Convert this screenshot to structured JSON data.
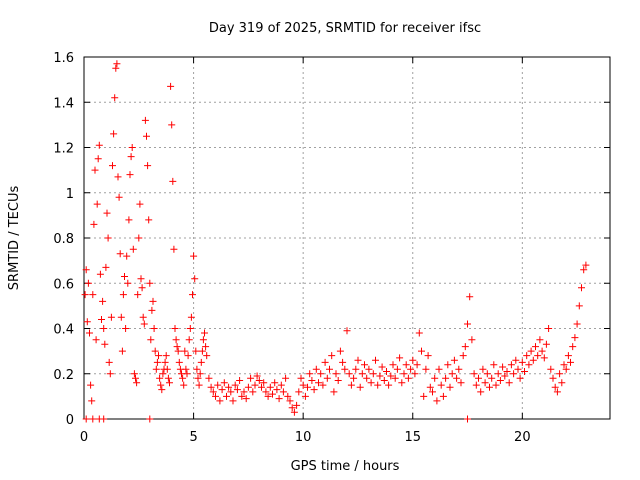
{
  "chart_data": {
    "type": "scatter",
    "title": "Day 319 of 2025, SRMTID for receiver ifsc",
    "xlabel": "GPS time / hours",
    "ylabel": "SRMTID / TECUs",
    "xlim": [
      0,
      24
    ],
    "ylim": [
      0,
      1.6
    ],
    "x_ticks": [
      0,
      5,
      10,
      15,
      20
    ],
    "x_tick_labels": [
      "0",
      "5",
      "10",
      "15",
      "20"
    ],
    "y_ticks": [
      0,
      0.2,
      0.4,
      0.6,
      0.8,
      1.0,
      1.2,
      1.4,
      1.6
    ],
    "y_tick_labels": [
      "0",
      "0.2",
      "0.4",
      "0.6",
      "0.8",
      "1",
      "1.2",
      "1.4",
      "1.6"
    ],
    "grid": true,
    "marker": "+",
    "marker_color": "#ff0000",
    "series": [
      {
        "name": "SRMTID",
        "points": [
          [
            0.05,
            0.55
          ],
          [
            0.1,
            0.66
          ],
          [
            0.15,
            0.43
          ],
          [
            0.2,
            0.6
          ],
          [
            0.25,
            0.38
          ],
          [
            0.3,
            0.15
          ],
          [
            0.35,
            0.08
          ],
          [
            0.4,
            0.55
          ],
          [
            0.45,
            0.86
          ],
          [
            0.5,
            1.1
          ],
          [
            0.55,
            0.35
          ],
          [
            0.6,
            0.95
          ],
          [
            0.65,
            1.15
          ],
          [
            0.7,
            1.21
          ],
          [
            0.75,
            0.64
          ],
          [
            0.8,
            0.44
          ],
          [
            0.85,
            0.52
          ],
          [
            0.9,
            0.4
          ],
          [
            0.95,
            0.33
          ],
          [
            1.0,
            0.67
          ],
          [
            1.05,
            0.91
          ],
          [
            1.1,
            0.8
          ],
          [
            1.15,
            0.25
          ],
          [
            1.2,
            0.2
          ],
          [
            1.25,
            0.45
          ],
          [
            1.3,
            1.12
          ],
          [
            1.35,
            1.26
          ],
          [
            1.4,
            1.42
          ],
          [
            1.45,
            1.55
          ],
          [
            1.5,
            1.57
          ],
          [
            1.55,
            1.07
          ],
          [
            1.6,
            0.98
          ],
          [
            1.65,
            0.73
          ],
          [
            1.7,
            0.45
          ],
          [
            1.75,
            0.3
          ],
          [
            1.8,
            0.55
          ],
          [
            1.85,
            0.63
          ],
          [
            1.9,
            0.4
          ],
          [
            1.95,
            0.72
          ],
          [
            2.0,
            0.6
          ],
          [
            2.05,
            0.88
          ],
          [
            2.1,
            1.08
          ],
          [
            2.15,
            1.16
          ],
          [
            2.2,
            1.2
          ],
          [
            2.25,
            0.75
          ],
          [
            2.3,
            0.2
          ],
          [
            2.35,
            0.18
          ],
          [
            2.4,
            0.16
          ],
          [
            2.45,
            0.55
          ],
          [
            2.5,
            0.8
          ],
          [
            2.55,
            0.95
          ],
          [
            2.6,
            0.62
          ],
          [
            2.65,
            0.58
          ],
          [
            2.7,
            0.45
          ],
          [
            2.75,
            0.42
          ],
          [
            2.8,
            1.32
          ],
          [
            2.85,
            1.25
          ],
          [
            2.9,
            1.12
          ],
          [
            2.95,
            0.88
          ],
          [
            3.0,
            0.6
          ],
          [
            3.05,
            0.35
          ],
          [
            3.1,
            0.48
          ],
          [
            3.15,
            0.52
          ],
          [
            3.2,
            0.4
          ],
          [
            3.25,
            0.3
          ],
          [
            3.3,
            0.22
          ],
          [
            3.35,
            0.25
          ],
          [
            3.4,
            0.28
          ],
          [
            3.45,
            0.18
          ],
          [
            3.5,
            0.15
          ],
          [
            3.55,
            0.13
          ],
          [
            3.6,
            0.2
          ],
          [
            3.65,
            0.22
          ],
          [
            3.7,
            0.25
          ],
          [
            3.75,
            0.28
          ],
          [
            3.8,
            0.22
          ],
          [
            3.85,
            0.18
          ],
          [
            3.9,
            0.16
          ],
          [
            3.95,
            1.47
          ],
          [
            4.0,
            1.3
          ],
          [
            4.05,
            1.05
          ],
          [
            4.1,
            0.75
          ],
          [
            4.15,
            0.4
          ],
          [
            4.2,
            0.35
          ],
          [
            4.25,
            0.32
          ],
          [
            4.3,
            0.3
          ],
          [
            4.35,
            0.25
          ],
          [
            4.4,
            0.22
          ],
          [
            4.45,
            0.2
          ],
          [
            4.5,
            0.18
          ],
          [
            4.55,
            0.15
          ],
          [
            4.6,
            0.3
          ],
          [
            4.65,
            0.22
          ],
          [
            4.7,
            0.2
          ],
          [
            4.75,
            0.28
          ],
          [
            4.8,
            0.35
          ],
          [
            4.85,
            0.4
          ],
          [
            4.9,
            0.45
          ],
          [
            4.95,
            0.55
          ],
          [
            5.0,
            0.72
          ],
          [
            5.05,
            0.62
          ],
          [
            5.1,
            0.3
          ],
          [
            5.15,
            0.22
          ],
          [
            5.2,
            0.18
          ],
          [
            5.25,
            0.15
          ],
          [
            5.3,
            0.2
          ],
          [
            5.35,
            0.25
          ],
          [
            5.4,
            0.3
          ],
          [
            5.45,
            0.35
          ],
          [
            5.5,
            0.38
          ],
          [
            5.55,
            0.32
          ],
          [
            5.6,
            0.28
          ],
          [
            5.7,
            0.18
          ],
          [
            5.8,
            0.14
          ],
          [
            5.9,
            0.12
          ],
          [
            6.0,
            0.1
          ],
          [
            6.1,
            0.15
          ],
          [
            6.2,
            0.08
          ],
          [
            6.3,
            0.13
          ],
          [
            6.4,
            0.16
          ],
          [
            6.5,
            0.1
          ],
          [
            6.6,
            0.14
          ],
          [
            6.7,
            0.12
          ],
          [
            6.8,
            0.08
          ],
          [
            6.9,
            0.15
          ],
          [
            7.0,
            0.13
          ],
          [
            7.1,
            0.17
          ],
          [
            7.2,
            0.1
          ],
          [
            7.3,
            0.12
          ],
          [
            7.4,
            0.09
          ],
          [
            7.5,
            0.14
          ],
          [
            7.6,
            0.18
          ],
          [
            7.7,
            0.12
          ],
          [
            7.8,
            0.15
          ],
          [
            7.9,
            0.19
          ],
          [
            8.0,
            0.17
          ],
          [
            8.1,
            0.14
          ],
          [
            8.2,
            0.16
          ],
          [
            8.3,
            0.12
          ],
          [
            8.4,
            0.1
          ],
          [
            8.5,
            0.14
          ],
          [
            8.6,
            0.11
          ],
          [
            8.7,
            0.16
          ],
          [
            8.8,
            0.13
          ],
          [
            8.9,
            0.09
          ],
          [
            9.0,
            0.15
          ],
          [
            9.1,
            0.12
          ],
          [
            9.2,
            0.18
          ],
          [
            9.3,
            0.1
          ],
          [
            9.4,
            0.08
          ],
          [
            9.5,
            0.05
          ],
          [
            9.6,
            0.03
          ],
          [
            9.7,
            0.06
          ],
          [
            9.8,
            0.12
          ],
          [
            9.9,
            0.18
          ],
          [
            10.0,
            0.15
          ],
          [
            10.1,
            0.1
          ],
          [
            10.2,
            0.14
          ],
          [
            10.3,
            0.2
          ],
          [
            10.4,
            0.17
          ],
          [
            10.5,
            0.13
          ],
          [
            10.6,
            0.22
          ],
          [
            10.7,
            0.16
          ],
          [
            10.8,
            0.2
          ],
          [
            10.9,
            0.15
          ],
          [
            11.0,
            0.25
          ],
          [
            11.1,
            0.18
          ],
          [
            11.2,
            0.22
          ],
          [
            11.3,
            0.28
          ],
          [
            11.4,
            0.12
          ],
          [
            11.5,
            0.2
          ],
          [
            11.6,
            0.17
          ],
          [
            11.7,
            0.3
          ],
          [
            11.8,
            0.25
          ],
          [
            11.9,
            0.22
          ],
          [
            12.0,
            0.39
          ],
          [
            12.1,
            0.2
          ],
          [
            12.2,
            0.15
          ],
          [
            12.3,
            0.18
          ],
          [
            12.4,
            0.22
          ],
          [
            12.5,
            0.26
          ],
          [
            12.6,
            0.14
          ],
          [
            12.7,
            0.2
          ],
          [
            12.8,
            0.24
          ],
          [
            12.9,
            0.18
          ],
          [
            13.0,
            0.22
          ],
          [
            13.1,
            0.16
          ],
          [
            13.2,
            0.2
          ],
          [
            13.3,
            0.26
          ],
          [
            13.4,
            0.15
          ],
          [
            13.5,
            0.19
          ],
          [
            13.6,
            0.23
          ],
          [
            13.7,
            0.17
          ],
          [
            13.8,
            0.21
          ],
          [
            13.9,
            0.15
          ],
          [
            14.0,
            0.19
          ],
          [
            14.1,
            0.24
          ],
          [
            14.2,
            0.18
          ],
          [
            14.3,
            0.22
          ],
          [
            14.4,
            0.27
          ],
          [
            14.5,
            0.16
          ],
          [
            14.6,
            0.2
          ],
          [
            14.7,
            0.24
          ],
          [
            14.8,
            0.18
          ],
          [
            14.9,
            0.22
          ],
          [
            15.0,
            0.26
          ],
          [
            15.1,
            0.2
          ],
          [
            15.2,
            0.24
          ],
          [
            15.3,
            0.38
          ],
          [
            15.4,
            0.3
          ],
          [
            15.5,
            0.1
          ],
          [
            15.6,
            0.22
          ],
          [
            15.7,
            0.28
          ],
          [
            15.8,
            0.14
          ],
          [
            15.9,
            0.12
          ],
          [
            16.0,
            0.18
          ],
          [
            16.1,
            0.08
          ],
          [
            16.2,
            0.22
          ],
          [
            16.3,
            0.15
          ],
          [
            16.4,
            0.1
          ],
          [
            16.5,
            0.18
          ],
          [
            16.6,
            0.24
          ],
          [
            16.7,
            0.14
          ],
          [
            16.8,
            0.2
          ],
          [
            16.9,
            0.26
          ],
          [
            17.0,
            0.18
          ],
          [
            17.1,
            0.22
          ],
          [
            17.2,
            0.16
          ],
          [
            17.3,
            0.28
          ],
          [
            17.4,
            0.32
          ],
          [
            17.5,
            0.42
          ],
          [
            17.6,
            0.54
          ],
          [
            17.7,
            0.35
          ],
          [
            17.8,
            0.2
          ],
          [
            17.9,
            0.15
          ],
          [
            18.0,
            0.18
          ],
          [
            18.1,
            0.12
          ],
          [
            18.2,
            0.22
          ],
          [
            18.3,
            0.16
          ],
          [
            18.4,
            0.2
          ],
          [
            18.5,
            0.14
          ],
          [
            18.6,
            0.18
          ],
          [
            18.7,
            0.24
          ],
          [
            18.8,
            0.15
          ],
          [
            18.9,
            0.2
          ],
          [
            19.0,
            0.17
          ],
          [
            19.1,
            0.23
          ],
          [
            19.2,
            0.19
          ],
          [
            19.3,
            0.21
          ],
          [
            19.4,
            0.16
          ],
          [
            19.5,
            0.24
          ],
          [
            19.6,
            0.2
          ],
          [
            19.7,
            0.26
          ],
          [
            19.8,
            0.22
          ],
          [
            19.9,
            0.18
          ],
          [
            20.0,
            0.25
          ],
          [
            20.1,
            0.21
          ],
          [
            20.2,
            0.28
          ],
          [
            20.3,
            0.24
          ],
          [
            20.4,
            0.3
          ],
          [
            20.5,
            0.26
          ],
          [
            20.6,
            0.32
          ],
          [
            20.7,
            0.28
          ],
          [
            20.8,
            0.35
          ],
          [
            20.9,
            0.3
          ],
          [
            21.0,
            0.27
          ],
          [
            21.1,
            0.33
          ],
          [
            21.2,
            0.4
          ],
          [
            21.3,
            0.22
          ],
          [
            21.4,
            0.18
          ],
          [
            21.5,
            0.14
          ],
          [
            21.6,
            0.12
          ],
          [
            21.7,
            0.2
          ],
          [
            21.8,
            0.16
          ],
          [
            21.9,
            0.24
          ],
          [
            22.0,
            0.22
          ],
          [
            22.1,
            0.28
          ],
          [
            22.2,
            0.25
          ],
          [
            22.3,
            0.32
          ],
          [
            22.4,
            0.36
          ],
          [
            22.5,
            0.42
          ],
          [
            22.6,
            0.5
          ],
          [
            22.7,
            0.58
          ],
          [
            22.8,
            0.66
          ],
          [
            22.9,
            0.68
          ],
          [
            0.1,
            0.0
          ],
          [
            0.4,
            0.0
          ],
          [
            0.7,
            0.0
          ],
          [
            0.9,
            0.0
          ],
          [
            3.0,
            0.0
          ],
          [
            17.5,
            0.0
          ]
        ]
      }
    ]
  }
}
